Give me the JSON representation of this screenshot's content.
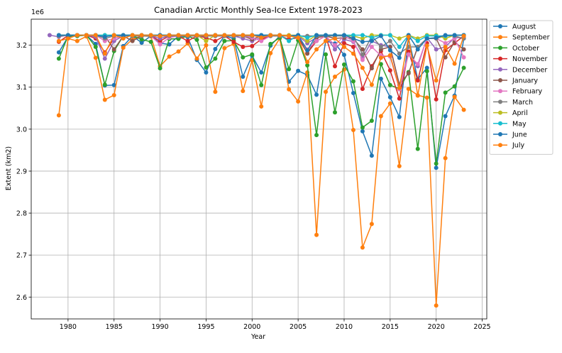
{
  "chart_data": {
    "type": "line",
    "title": "Canadian Arctic Monthly Sea-Ice Extent 1978-2023",
    "xlabel": "Year",
    "ylabel": "Extent (km2)",
    "y_offset_label": "1e6",
    "xlim": [
      1976,
      2025.5
    ],
    "ylim": [
      2.548,
      3.262
    ],
    "x_ticks": [
      1980,
      1985,
      1990,
      1995,
      2000,
      2005,
      2010,
      2015,
      2020,
      2025
    ],
    "y_ticks": [
      2.6,
      2.7,
      2.8,
      2.9,
      3.0,
      3.1,
      3.2
    ],
    "y_tick_labels": [
      "2.6",
      "2.7",
      "2.8",
      "2.9",
      "3.0",
      "3.1",
      "3.2"
    ],
    "grid": true,
    "legend_position": "outside-right",
    "series": [
      {
        "name": "August",
        "color": "#1f77b4",
        "x": [
          1979,
          1980,
          1981,
          1982,
          1983,
          1984,
          1985,
          1986,
          1987,
          1988,
          1989,
          1990,
          1991,
          1992,
          1993,
          1994,
          1995,
          1996,
          1997,
          1998,
          1999,
          2000,
          2001,
          2002,
          2003,
          2004,
          2005,
          2006,
          2007,
          2008,
          2009,
          2010,
          2011,
          2012,
          2013,
          2014,
          2015,
          2016,
          2017,
          2018,
          2019,
          2020,
          2021,
          2022,
          2023
        ],
        "y": [
          3.183,
          3.22,
          3.222,
          3.224,
          3.203,
          3.104,
          3.105,
          3.198,
          3.222,
          3.206,
          3.222,
          3.205,
          3.202,
          3.222,
          3.219,
          3.165,
          3.135,
          3.191,
          3.222,
          3.216,
          3.125,
          3.175,
          3.135,
          3.199,
          3.222,
          3.113,
          3.139,
          3.129,
          3.082,
          3.21,
          3.204,
          3.177,
          3.086,
          2.995,
          2.937,
          3.12,
          3.076,
          3.029,
          3.217,
          3.119,
          3.146,
          2.908,
          3.031,
          3.08,
          3.216
        ]
      },
      {
        "name": "September",
        "color": "#ff7f0e",
        "x": [
          1979,
          1980,
          1981,
          1982,
          1983,
          1984,
          1985,
          1986,
          1987,
          1988,
          1989,
          1990,
          1991,
          1992,
          1993,
          1994,
          1995,
          1996,
          1997,
          1998,
          1999,
          2000,
          2001,
          2002,
          2003,
          2004,
          2005,
          2006,
          2007,
          2008,
          2009,
          2010,
          2011,
          2012,
          2013,
          2014,
          2015,
          2016,
          2017,
          2018,
          2019,
          2020,
          2021,
          2022,
          2023
        ],
        "y": [
          3.033,
          3.216,
          3.21,
          3.221,
          3.17,
          3.07,
          3.081,
          3.194,
          3.214,
          3.222,
          3.221,
          3.15,
          3.173,
          3.185,
          3.204,
          3.168,
          3.2,
          3.089,
          3.193,
          3.203,
          3.091,
          3.164,
          3.054,
          3.181,
          3.216,
          3.095,
          3.066,
          3.135,
          2.748,
          3.089,
          3.125,
          3.142,
          2.998,
          2.718,
          2.774,
          3.031,
          3.061,
          2.912,
          3.096,
          3.081,
          3.075,
          2.58,
          2.931,
          3.077,
          3.046
        ]
      },
      {
        "name": "October",
        "color": "#2ca02c",
        "x": [
          1979,
          1980,
          1981,
          1982,
          1983,
          1984,
          1985,
          1986,
          1987,
          1988,
          1989,
          1990,
          1991,
          1992,
          1993,
          1994,
          1995,
          1996,
          1997,
          1998,
          1999,
          2000,
          2001,
          2002,
          2003,
          2004,
          2005,
          2006,
          2007,
          2008,
          2009,
          2010,
          2011,
          2012,
          2013,
          2014,
          2015,
          2016,
          2017,
          2018,
          2019,
          2020,
          2021,
          2022,
          2023
        ],
        "y": [
          3.168,
          3.222,
          3.222,
          3.224,
          3.196,
          3.106,
          3.186,
          3.222,
          3.222,
          3.214,
          3.208,
          3.145,
          3.215,
          3.215,
          3.222,
          3.213,
          3.147,
          3.168,
          3.21,
          3.211,
          3.171,
          3.178,
          3.105,
          3.203,
          3.218,
          3.143,
          3.212,
          3.152,
          2.986,
          3.178,
          3.04,
          3.154,
          3.114,
          3.004,
          3.02,
          3.155,
          3.105,
          3.096,
          3.136,
          2.953,
          3.138,
          2.918,
          3.087,
          3.102,
          3.146
        ]
      },
      {
        "name": "November",
        "color": "#d62728",
        "x": [
          1979,
          1980,
          1981,
          1982,
          1983,
          1984,
          1985,
          1986,
          1987,
          1988,
          1989,
          1990,
          1991,
          1992,
          1993,
          1994,
          1995,
          1996,
          1997,
          1998,
          1999,
          2000,
          2001,
          2002,
          2003,
          2004,
          2005,
          2006,
          2007,
          2008,
          2009,
          2010,
          2011,
          2012,
          2013,
          2014,
          2015,
          2016,
          2017,
          2018,
          2019,
          2020,
          2021,
          2022,
          2023
        ],
        "y": [
          3.208,
          3.223,
          3.224,
          3.224,
          3.216,
          3.183,
          3.216,
          3.222,
          3.222,
          3.222,
          3.222,
          3.21,
          3.222,
          3.222,
          3.21,
          3.222,
          3.218,
          3.21,
          3.222,
          3.208,
          3.196,
          3.198,
          3.214,
          3.222,
          3.222,
          3.214,
          3.218,
          3.181,
          3.21,
          3.222,
          3.15,
          3.205,
          3.196,
          3.096,
          3.15,
          3.186,
          3.14,
          3.073,
          3.185,
          3.116,
          3.205,
          3.071,
          3.188,
          3.205,
          3.222
        ]
      },
      {
        "name": "December",
        "color": "#9467bd",
        "x": [
          1978,
          1979,
          1980,
          1981,
          1982,
          1983,
          1984,
          1985,
          1986,
          1987,
          1988,
          1989,
          1990,
          1991,
          1992,
          1993,
          1994,
          1995,
          1996,
          1997,
          1998,
          1999,
          2000,
          2001,
          2002,
          2003,
          2004,
          2005,
          2006,
          2007,
          2008,
          2009,
          2010,
          2011,
          2012,
          2013,
          2014,
          2015,
          2016,
          2017,
          2018,
          2019,
          2020,
          2021,
          2022,
          2023
        ],
        "y": [
          3.224,
          3.22,
          3.224,
          3.224,
          3.224,
          3.22,
          3.168,
          3.21,
          3.222,
          3.222,
          3.222,
          3.222,
          3.216,
          3.222,
          3.222,
          3.222,
          3.222,
          3.222,
          3.222,
          3.222,
          3.222,
          3.216,
          3.21,
          3.218,
          3.222,
          3.222,
          3.222,
          3.222,
          3.205,
          3.218,
          3.222,
          3.19,
          3.214,
          3.208,
          3.17,
          3.21,
          3.2,
          3.196,
          3.106,
          3.178,
          3.15,
          3.218,
          3.19,
          3.196,
          3.218,
          3.218
        ]
      },
      {
        "name": "January",
        "color": "#8c564b",
        "x": [
          1979,
          1980,
          1981,
          1982,
          1983,
          1984,
          1985,
          1986,
          1987,
          1988,
          1989,
          1990,
          1991,
          1992,
          1993,
          1994,
          1995,
          1996,
          1997,
          1998,
          1999,
          2000,
          2001,
          2002,
          2003,
          2004,
          2005,
          2006,
          2007,
          2008,
          2009,
          2010,
          2011,
          2012,
          2013,
          2014,
          2015,
          2016,
          2017,
          2018,
          2019,
          2020,
          2021,
          2022,
          2023
        ],
        "y": [
          3.222,
          3.224,
          3.224,
          3.224,
          3.224,
          3.222,
          3.19,
          3.222,
          3.21,
          3.222,
          3.222,
          3.222,
          3.222,
          3.222,
          3.222,
          3.222,
          3.222,
          3.222,
          3.222,
          3.222,
          3.222,
          3.214,
          3.222,
          3.222,
          3.222,
          3.222,
          3.222,
          3.18,
          3.218,
          3.222,
          3.216,
          3.218,
          3.216,
          3.19,
          3.145,
          3.19,
          3.196,
          3.106,
          3.133,
          3.196,
          3.216,
          3.216,
          3.171,
          3.208,
          3.19
        ]
      },
      {
        "name": "February",
        "color": "#e377c2",
        "x": [
          1979,
          1980,
          1981,
          1982,
          1983,
          1984,
          1985,
          1986,
          1987,
          1988,
          1989,
          1990,
          1991,
          1992,
          1993,
          1994,
          1995,
          1996,
          1997,
          1998,
          1999,
          2000,
          2001,
          2002,
          2003,
          2004,
          2005,
          2006,
          2007,
          2008,
          2009,
          2010,
          2011,
          2012,
          2013,
          2014,
          2015,
          2016,
          2017,
          2018,
          2019,
          2020,
          2021,
          2022,
          2023
        ],
        "y": [
          3.222,
          3.224,
          3.224,
          3.224,
          3.224,
          3.21,
          3.216,
          3.222,
          3.222,
          3.222,
          3.222,
          3.202,
          3.218,
          3.222,
          3.222,
          3.222,
          3.222,
          3.222,
          3.222,
          3.222,
          3.222,
          3.218,
          3.21,
          3.222,
          3.222,
          3.222,
          3.222,
          3.19,
          3.21,
          3.222,
          3.2,
          3.222,
          3.21,
          3.165,
          3.196,
          3.175,
          3.173,
          3.095,
          3.178,
          3.155,
          3.216,
          3.216,
          3.205,
          3.216,
          3.171
        ]
      },
      {
        "name": "March",
        "color": "#7f7f7f",
        "x": [
          1979,
          1980,
          1981,
          1982,
          1983,
          1984,
          1985,
          1986,
          1987,
          1988,
          1989,
          1990,
          1991,
          1992,
          1993,
          1994,
          1995,
          1996,
          1997,
          1998,
          1999,
          2000,
          2001,
          2002,
          2003,
          2004,
          2005,
          2006,
          2007,
          2008,
          2009,
          2010,
          2011,
          2012,
          2013,
          2014,
          2015,
          2016,
          2017,
          2018,
          2019,
          2020,
          2021,
          2022,
          2023
        ],
        "y": [
          3.222,
          3.224,
          3.224,
          3.224,
          3.224,
          3.216,
          3.222,
          3.222,
          3.222,
          3.222,
          3.222,
          3.222,
          3.222,
          3.222,
          3.222,
          3.222,
          3.222,
          3.222,
          3.222,
          3.222,
          3.222,
          3.222,
          3.222,
          3.222,
          3.222,
          3.222,
          3.222,
          3.222,
          3.222,
          3.222,
          3.222,
          3.222,
          3.222,
          3.178,
          3.222,
          3.196,
          3.21,
          3.18,
          3.196,
          3.196,
          3.216,
          3.216,
          3.222,
          3.222,
          3.216
        ]
      },
      {
        "name": "April",
        "color": "#bcbd22",
        "x": [
          1979,
          1980,
          1981,
          1982,
          1983,
          1984,
          1985,
          1986,
          1987,
          1988,
          1989,
          1990,
          1991,
          1992,
          1993,
          1994,
          1995,
          1996,
          1997,
          1998,
          1999,
          2000,
          2001,
          2002,
          2003,
          2004,
          2005,
          2006,
          2007,
          2008,
          2009,
          2010,
          2011,
          2012,
          2013,
          2014,
          2015,
          2016,
          2017,
          2018,
          2019,
          2020,
          2021,
          2022,
          2023
        ],
        "y": [
          3.224,
          3.224,
          3.224,
          3.224,
          3.224,
          3.224,
          3.224,
          3.224,
          3.224,
          3.224,
          3.224,
          3.224,
          3.224,
          3.224,
          3.224,
          3.224,
          3.21,
          3.224,
          3.224,
          3.224,
          3.224,
          3.224,
          3.224,
          3.224,
          3.224,
          3.224,
          3.224,
          3.21,
          3.224,
          3.224,
          3.224,
          3.224,
          3.222,
          3.216,
          3.224,
          3.224,
          3.224,
          3.216,
          3.224,
          3.216,
          3.224,
          3.224,
          3.216,
          3.224,
          3.224
        ]
      },
      {
        "name": "May",
        "color": "#17becf",
        "x": [
          1979,
          1980,
          1981,
          1982,
          1983,
          1984,
          1985,
          1986,
          1987,
          1988,
          1989,
          1990,
          1991,
          1992,
          1993,
          1994,
          1995,
          1996,
          1997,
          1998,
          1999,
          2000,
          2001,
          2002,
          2003,
          2004,
          2005,
          2006,
          2007,
          2008,
          2009,
          2010,
          2011,
          2012,
          2013,
          2014,
          2015,
          2016,
          2017,
          2018,
          2019,
          2020,
          2021,
          2022,
          2023
        ],
        "y": [
          3.224,
          3.224,
          3.224,
          3.224,
          3.224,
          3.224,
          3.224,
          3.224,
          3.224,
          3.224,
          3.224,
          3.224,
          3.224,
          3.224,
          3.224,
          3.224,
          3.224,
          3.224,
          3.224,
          3.224,
          3.224,
          3.224,
          3.224,
          3.224,
          3.224,
          3.21,
          3.224,
          3.218,
          3.224,
          3.224,
          3.224,
          3.224,
          3.224,
          3.224,
          3.218,
          3.224,
          3.224,
          3.196,
          3.224,
          3.21,
          3.222,
          3.222,
          3.222,
          3.224,
          3.224
        ]
      },
      {
        "name": "June",
        "color": "#1f77b4",
        "x": [
          1979,
          1980,
          1981,
          1982,
          1983,
          1984,
          1985,
          1986,
          1987,
          1988,
          1989,
          1990,
          1991,
          1992,
          1993,
          1994,
          1995,
          1996,
          1997,
          1998,
          1999,
          2000,
          2001,
          2002,
          2003,
          2004,
          2005,
          2006,
          2007,
          2008,
          2009,
          2010,
          2011,
          2012,
          2013,
          2014,
          2015,
          2016,
          2017,
          2018,
          2019,
          2020,
          2021,
          2022,
          2023
        ],
        "y": [
          3.224,
          3.224,
          3.224,
          3.224,
          3.224,
          3.22,
          3.224,
          3.224,
          3.224,
          3.224,
          3.224,
          3.224,
          3.224,
          3.224,
          3.224,
          3.224,
          3.224,
          3.224,
          3.224,
          3.224,
          3.224,
          3.224,
          3.224,
          3.224,
          3.224,
          3.222,
          3.224,
          3.188,
          3.224,
          3.224,
          3.224,
          3.224,
          3.216,
          3.208,
          3.21,
          3.222,
          3.188,
          3.17,
          3.224,
          3.19,
          3.216,
          3.218,
          3.224,
          3.224,
          3.224
        ]
      },
      {
        "name": "July",
        "color": "#ff7f0e",
        "x": [
          1979,
          1980,
          1981,
          1982,
          1983,
          1984,
          1985,
          1986,
          1987,
          1988,
          1989,
          1990,
          1991,
          1992,
          1993,
          1994,
          1995,
          1996,
          1997,
          1998,
          1999,
          2000,
          2001,
          2002,
          2003,
          2004,
          2005,
          2006,
          2007,
          2008,
          2009,
          2010,
          2011,
          2012,
          2013,
          2014,
          2015,
          2016,
          2017,
          2018,
          2019,
          2020,
          2021,
          2022,
          2023
        ],
        "y": [
          3.21,
          3.216,
          3.224,
          3.224,
          3.224,
          3.18,
          3.224,
          3.216,
          3.224,
          3.224,
          3.224,
          3.222,
          3.224,
          3.224,
          3.224,
          3.224,
          3.224,
          3.224,
          3.224,
          3.224,
          3.224,
          3.224,
          3.218,
          3.224,
          3.224,
          3.222,
          3.218,
          3.16,
          3.19,
          3.21,
          3.216,
          3.196,
          3.18,
          3.146,
          3.106,
          3.17,
          3.176,
          3.098,
          3.22,
          3.08,
          3.199,
          3.116,
          3.196,
          3.156,
          3.222
        ]
      }
    ]
  }
}
